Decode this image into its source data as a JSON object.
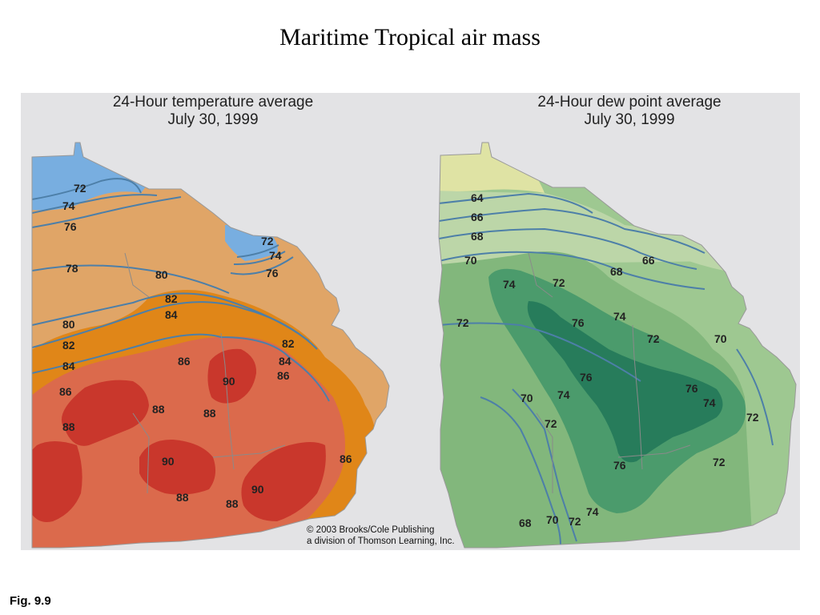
{
  "slide": {
    "title": "Maritime Tropical air mass",
    "figure_label": "Fig. 9.9"
  },
  "maps": {
    "temperature": {
      "title_line1": "24-Hour temperature average",
      "title_line2": "July 30, 1999",
      "isotherm_labels": [
        "72",
        "74",
        "76",
        "72",
        "74",
        "76",
        "78",
        "80",
        "80",
        "82",
        "84",
        "82",
        "84",
        "86",
        "86",
        "86",
        "88",
        "88",
        "88",
        "88",
        "90",
        "90",
        "90",
        "88",
        "86",
        "82",
        "84"
      ],
      "colors": {
        "cool": "#78aee0",
        "warm": "#e0a567",
        "hot": "#e08618",
        "hotter": "#db6a4c",
        "hottest": "#c9372c"
      }
    },
    "dewpoint": {
      "title_line1": "24-Hour dew point average",
      "title_line2": "July 30, 1999",
      "isodrosotherm_labels": [
        "64",
        "66",
        "68",
        "70",
        "72",
        "74",
        "72",
        "68",
        "66",
        "72",
        "76",
        "74",
        "72",
        "70",
        "76",
        "74",
        "72",
        "70",
        "76",
        "74",
        "72",
        "68",
        "70",
        "72",
        "74",
        "76"
      ],
      "colors": {
        "low": "#dfe3a4",
        "mid1": "#bcd6a8",
        "mid2": "#9ec891",
        "mid3": "#82b77c",
        "high": "#4b9b6c",
        "highest": "#277c5b"
      }
    },
    "credit_line1": "© 2003 Brooks/Cole Publishing",
    "credit_line2": "a division of Thomson Learning, Inc."
  }
}
